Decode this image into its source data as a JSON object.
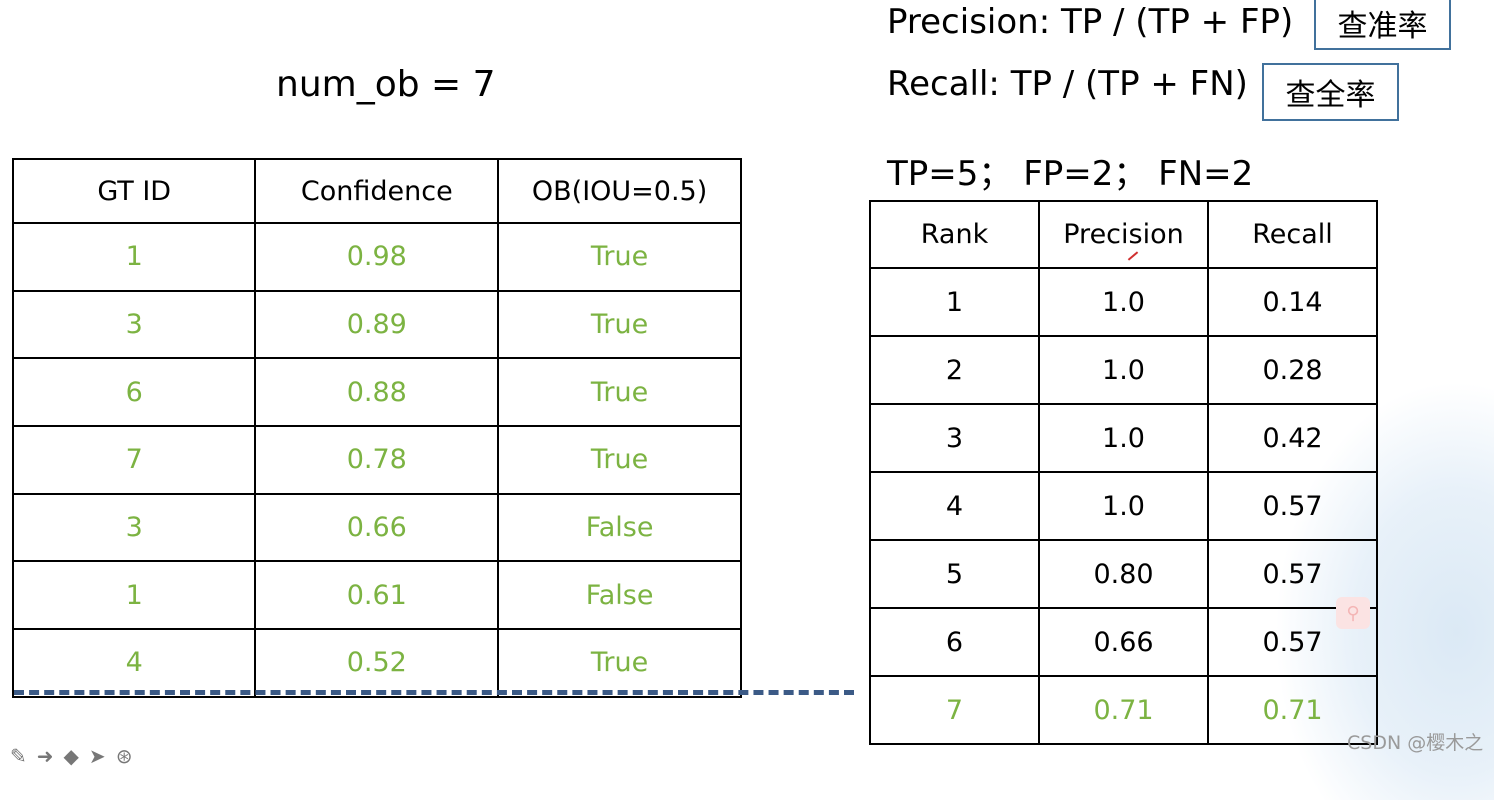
{
  "slide": {
    "num_ob": "num_ob = 7",
    "precision_formula": "Precision: TP / (TP + FP)",
    "precision_cn": "查准率",
    "recall_formula": "Recall: TP / (TP + FN)",
    "recall_cn": "查全率",
    "counts": "TP=5； FP=2； FN=2"
  },
  "left_table": {
    "headers": [
      "GT ID",
      "Confidence",
      "OB(IOU=0.5)"
    ],
    "rows": [
      [
        "1",
        "0.98",
        "True"
      ],
      [
        "3",
        "0.89",
        "True"
      ],
      [
        "6",
        "0.88",
        "True"
      ],
      [
        "7",
        "0.78",
        "True"
      ],
      [
        "3",
        "0.66",
        "False"
      ],
      [
        "1",
        "0.61",
        "False"
      ],
      [
        "4",
        "0.52",
        "True"
      ]
    ]
  },
  "right_table": {
    "headers": [
      "Rank",
      "Precision",
      "Recall"
    ],
    "rows": [
      [
        "1",
        "1.0",
        "0.14"
      ],
      [
        "2",
        "1.0",
        "0.28"
      ],
      [
        "3",
        "1.0",
        "0.42"
      ],
      [
        "4",
        "1.0",
        "0.57"
      ],
      [
        "5",
        "0.80",
        "0.57"
      ],
      [
        "6",
        "0.66",
        "0.57"
      ],
      [
        "7",
        "0.71",
        "0.71"
      ]
    ]
  },
  "colors": {
    "highlight_green": "#7cb342",
    "box_border": "#41719c",
    "dash": "#3b5a86"
  },
  "watermark": "CSDN @樱木之",
  "icons": {
    "floating_button": "search-icon",
    "toolbar": [
      "pen-icon",
      "arrow-icon",
      "eraser-icon",
      "pointer-icon",
      "settings-icon"
    ]
  }
}
